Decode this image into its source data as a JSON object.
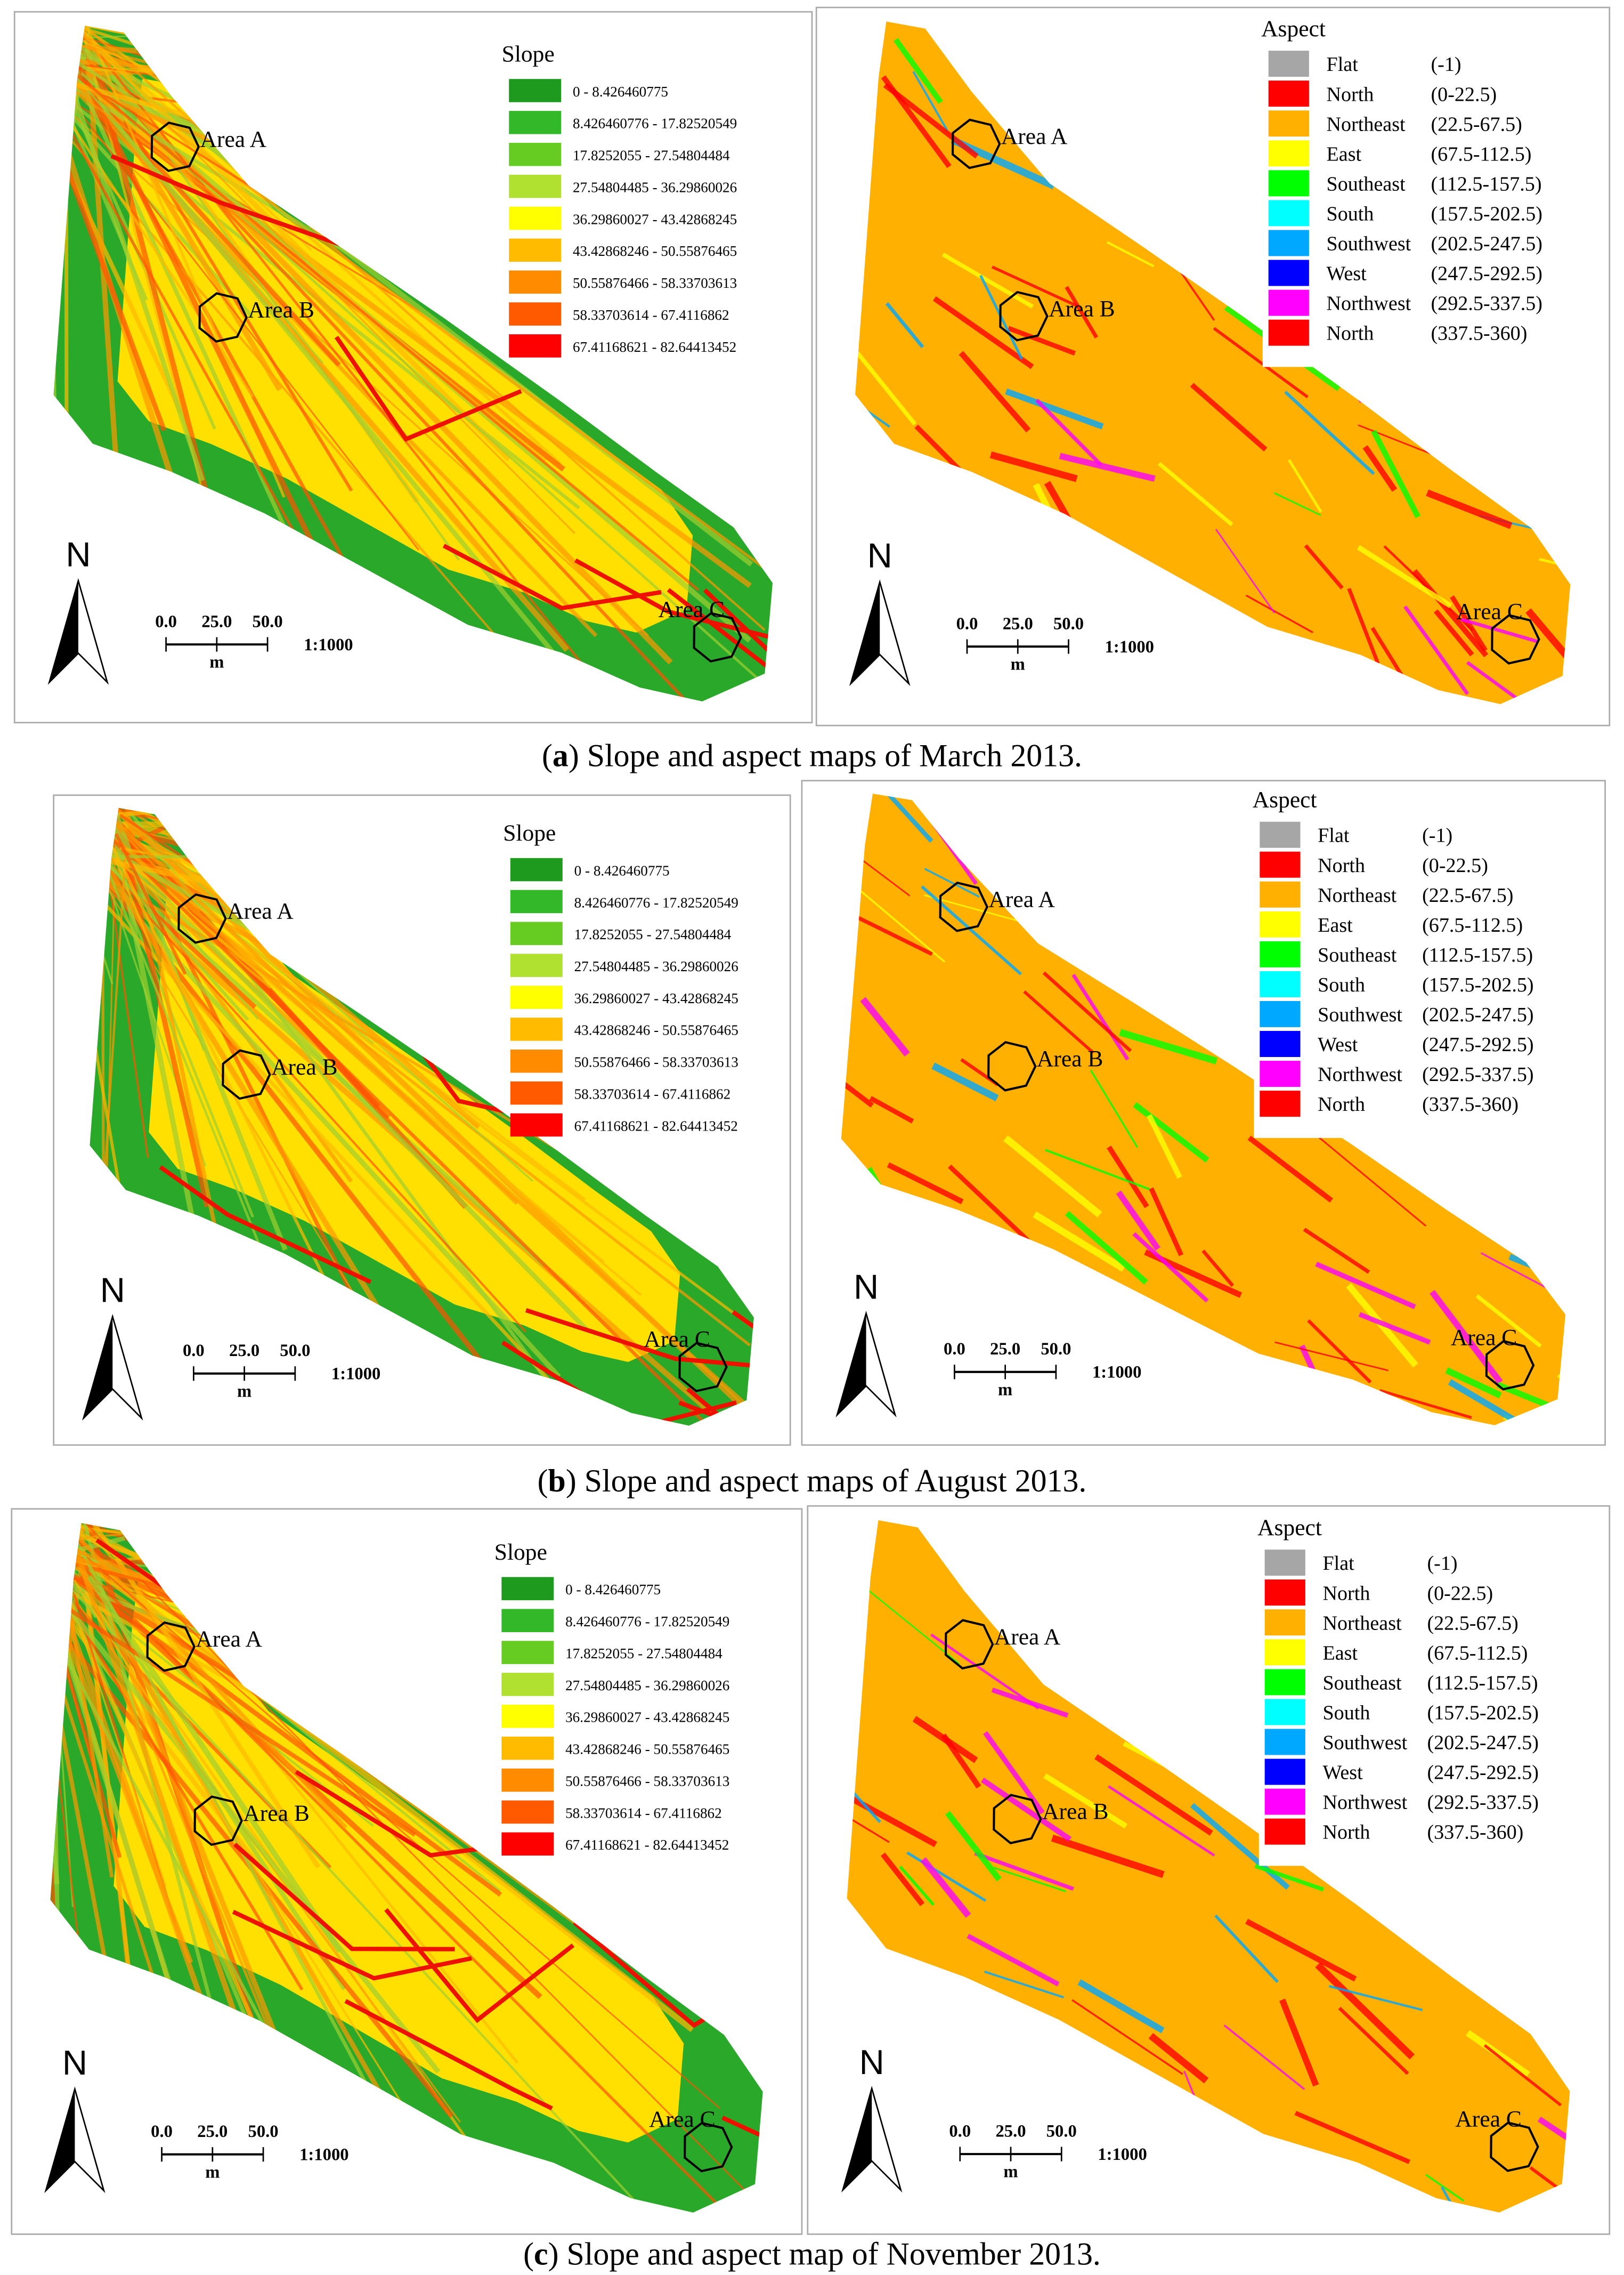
{
  "slope_legend": {
    "title": "Slope",
    "classes": [
      {
        "label": "0 - 8.426460775",
        "color": "#1e9a1e"
      },
      {
        "label": "8.426460776 - 17.82520549",
        "color": "#33b82a"
      },
      {
        "label": "17.8252055 - 27.54804484",
        "color": "#66cc22"
      },
      {
        "label": "27.54804485 - 36.29860026",
        "color": "#b0e030"
      },
      {
        "label": "36.29860027 - 43.42868245",
        "color": "#ffff00"
      },
      {
        "label": "43.42868246 - 50.55876465",
        "color": "#ffbb00"
      },
      {
        "label": "50.55876466 - 58.33703613",
        "color": "#ff8c00"
      },
      {
        "label": "58.33703614 - 67.4116862",
        "color": "#ff5a00"
      },
      {
        "label": "67.41168621 - 82.64413452",
        "color": "#ff0000"
      }
    ]
  },
  "aspect_legend": {
    "title": "Aspect",
    "classes": [
      {
        "name": "Flat",
        "range": "(-1)",
        "color": "#a6a6a6"
      },
      {
        "name": "North",
        "range": "(0-22.5)",
        "color": "#ff0000"
      },
      {
        "name": "Northeast",
        "range": "(22.5-67.5)",
        "color": "#ffb000"
      },
      {
        "name": "East",
        "range": "(67.5-112.5)",
        "color": "#ffff00"
      },
      {
        "name": "Southeast",
        "range": "(112.5-157.5)",
        "color": "#00ff00"
      },
      {
        "name": "South",
        "range": "(157.5-202.5)",
        "color": "#00ffff"
      },
      {
        "name": "Southwest",
        "range": "(202.5-247.5)",
        "color": "#00a8ff"
      },
      {
        "name": "West",
        "range": "(247.5-292.5)",
        "color": "#0000ff"
      },
      {
        "name": "Northwest",
        "range": "(292.5-337.5)",
        "color": "#ff00ff"
      },
      {
        "name": "North",
        "range": "(337.5-360)",
        "color": "#ff0000"
      }
    ]
  },
  "map_labels": {
    "areas": [
      "Area A",
      "Area B",
      "Area C"
    ],
    "north": "N",
    "scale_ticks": [
      "0.0",
      "25.0",
      "50.0"
    ],
    "scale_unit": "m",
    "scale_ratio": "1:1000"
  },
  "panels": [
    {
      "caption": {
        "open": "(",
        "letter": "a",
        "text": ") Slope and aspect maps of March 2013."
      }
    },
    {
      "caption": {
        "open": "(",
        "letter": "b",
        "text": ") Slope and aspect maps of August 2013."
      }
    },
    {
      "caption": {
        "open": "(",
        "letter": "c",
        "text": ") Slope and aspect map of November 2013."
      }
    }
  ]
}
